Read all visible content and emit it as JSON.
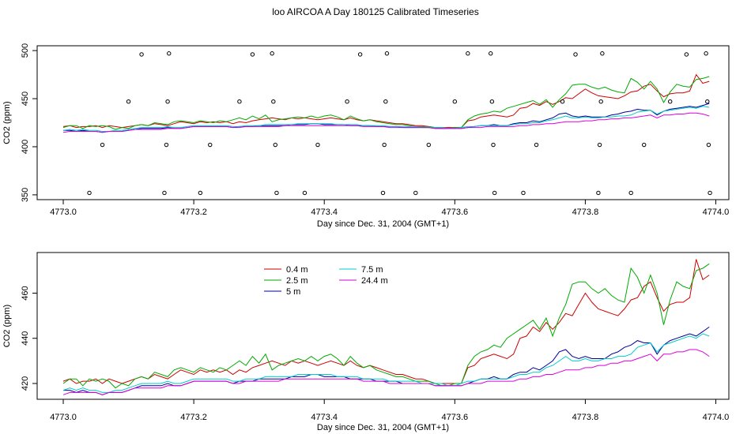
{
  "title": "loo AIRCOA A  Day 180125  Calibrated Timeseries",
  "chart_data": [
    {
      "type": "scatter",
      "xlabel": "Day since Dec. 31, 2004 (GMT+1)",
      "ylabel": "CO2 (ppm)",
      "xlim": [
        4772.96,
        4774.02
      ],
      "ylim": [
        345,
        505
      ],
      "xticks": [
        "4773.0",
        "4773.2",
        "4773.4",
        "4773.6",
        "4773.8",
        "4774.0"
      ],
      "yticks": [
        "350",
        "400",
        "450",
        "500"
      ],
      "lines_shared_with_panel_2": true,
      "points": [
        [
          4773.04,
          352
        ],
        [
          4773.06,
          402
        ],
        [
          4773.1,
          447
        ],
        [
          4773.12,
          496
        ],
        [
          4773.155,
          352
        ],
        [
          4773.158,
          402
        ],
        [
          4773.16,
          447
        ],
        [
          4773.162,
          497
        ],
        [
          4773.21,
          352
        ],
        [
          4773.225,
          402
        ],
        [
          4773.27,
          447
        ],
        [
          4773.29,
          496
        ],
        [
          4773.32,
          497
        ],
        [
          4773.322,
          447
        ],
        [
          4773.325,
          402
        ],
        [
          4773.327,
          352
        ],
        [
          4773.37,
          352
        ],
        [
          4773.39,
          402
        ],
        [
          4773.435,
          447
        ],
        [
          4773.455,
          496
        ],
        [
          4773.49,
          352
        ],
        [
          4773.492,
          402
        ],
        [
          4773.494,
          447
        ],
        [
          4773.496,
          497
        ],
        [
          4773.54,
          352
        ],
        [
          4773.56,
          402
        ],
        [
          4773.6,
          447
        ],
        [
          4773.62,
          497
        ],
        [
          4773.655,
          497
        ],
        [
          4773.657,
          447
        ],
        [
          4773.659,
          402
        ],
        [
          4773.661,
          352
        ],
        [
          4773.705,
          352
        ],
        [
          4773.725,
          402
        ],
        [
          4773.765,
          447
        ],
        [
          4773.785,
          496
        ],
        [
          4773.82,
          352
        ],
        [
          4773.822,
          402
        ],
        [
          4773.824,
          447
        ],
        [
          4773.826,
          497
        ],
        [
          4773.87,
          352
        ],
        [
          4773.89,
          402
        ],
        [
          4773.93,
          447
        ],
        [
          4773.955,
          496
        ],
        [
          4773.985,
          497
        ],
        [
          4773.987,
          447
        ],
        [
          4773.989,
          402
        ],
        [
          4773.991,
          352
        ]
      ]
    },
    {
      "type": "line",
      "xlabel": "Day since Dec. 31, 2004 (GMT+1)",
      "ylabel": "CO2 (ppm)",
      "xlim": [
        4772.96,
        4774.02
      ],
      "ylim": [
        413,
        478
      ],
      "xticks": [
        "4773.0",
        "4773.2",
        "4773.4",
        "4773.6",
        "4773.8",
        "4774.0"
      ],
      "yticks": [
        "420",
        "440",
        "460"
      ],
      "legend_placement": "top-left",
      "x": [
        4773.0,
        4773.01,
        4773.02,
        4773.03,
        4773.04,
        4773.05,
        4773.06,
        4773.07,
        4773.08,
        4773.09,
        4773.1,
        4773.11,
        4773.12,
        4773.13,
        4773.14,
        4773.15,
        4773.16,
        4773.17,
        4773.18,
        4773.19,
        4773.2,
        4773.21,
        4773.22,
        4773.23,
        4773.24,
        4773.25,
        4773.26,
        4773.27,
        4773.28,
        4773.29,
        4773.3,
        4773.31,
        4773.32,
        4773.33,
        4773.34,
        4773.35,
        4773.36,
        4773.37,
        4773.38,
        4773.39,
        4773.4,
        4773.41,
        4773.42,
        4773.43,
        4773.44,
        4773.45,
        4773.46,
        4773.47,
        4773.48,
        4773.49,
        4773.5,
        4773.51,
        4773.52,
        4773.53,
        4773.54,
        4773.55,
        4773.56,
        4773.57,
        4773.58,
        4773.59,
        4773.6,
        4773.61,
        4773.62,
        4773.63,
        4773.64,
        4773.65,
        4773.66,
        4773.67,
        4773.68,
        4773.69,
        4773.7,
        4773.71,
        4773.72,
        4773.73,
        4773.74,
        4773.75,
        4773.76,
        4773.77,
        4773.78,
        4773.79,
        4773.8,
        4773.81,
        4773.82,
        4773.83,
        4773.84,
        4773.85,
        4773.86,
        4773.87,
        4773.88,
        4773.89,
        4773.9,
        4773.91,
        4773.92,
        4773.93,
        4773.94,
        4773.95,
        4773.96,
        4773.97,
        4773.98,
        4773.99
      ],
      "series": [
        {
          "name": "0.4 m",
          "color": "#cc0000",
          "values": [
            421,
            422,
            420,
            421,
            421,
            422,
            420,
            422,
            421,
            420,
            421,
            422,
            423,
            422,
            424,
            423,
            422,
            424,
            426,
            425,
            424,
            426,
            425,
            426,
            425,
            426,
            424,
            426,
            425,
            427,
            428,
            429,
            430,
            429,
            428,
            430,
            429,
            430,
            429,
            428,
            429,
            430,
            429,
            428,
            430,
            428,
            427,
            428,
            427,
            426,
            425,
            424,
            424,
            423,
            422,
            422,
            421,
            420,
            420,
            420,
            420,
            420,
            427,
            428,
            431,
            432,
            433,
            432,
            431,
            433,
            440,
            441,
            445,
            443,
            447,
            444,
            447,
            451,
            450,
            455,
            460,
            456,
            453,
            452,
            451,
            450,
            453,
            457,
            458,
            463,
            465,
            458,
            452,
            455,
            456,
            456,
            458,
            475,
            466,
            468
          ]
        },
        {
          "name": "2.5 m",
          "color": "#00aa00",
          "values": [
            420,
            422,
            422,
            419,
            422,
            421,
            422,
            421,
            418,
            420,
            419,
            422,
            423,
            422,
            425,
            424,
            423,
            426,
            427,
            426,
            425,
            427,
            426,
            425,
            427,
            426,
            428,
            430,
            428,
            432,
            429,
            433,
            426,
            428,
            429,
            430,
            431,
            430,
            432,
            430,
            432,
            433,
            431,
            428,
            432,
            429,
            427,
            428,
            426,
            425,
            424,
            423,
            423,
            422,
            421,
            421,
            421,
            420,
            419,
            419,
            420,
            420,
            428,
            432,
            434,
            435,
            437,
            436,
            440,
            442,
            444,
            446,
            448,
            444,
            449,
            441,
            449,
            455,
            464,
            465,
            465,
            462,
            460,
            462,
            459,
            457,
            456,
            471,
            467,
            460,
            468,
            460,
            446,
            457,
            465,
            463,
            462,
            470,
            471,
            473
          ]
        },
        {
          "name": "5 m",
          "color": "#000099",
          "values": [
            417,
            417,
            416,
            417,
            416,
            416,
            415,
            416,
            416,
            416,
            417,
            418,
            419,
            419,
            419,
            419,
            420,
            419,
            419,
            420,
            421,
            421,
            421,
            421,
            421,
            421,
            420,
            421,
            421,
            421,
            422,
            422,
            422,
            422,
            422,
            423,
            423,
            423,
            424,
            424,
            423,
            423,
            423,
            423,
            422,
            422,
            422,
            422,
            421,
            421,
            421,
            421,
            420,
            420,
            420,
            420,
            420,
            419,
            419,
            419,
            419,
            419,
            420,
            421,
            422,
            422,
            423,
            422,
            422,
            424,
            425,
            425,
            427,
            426,
            428,
            430,
            434,
            435,
            432,
            431,
            432,
            431,
            431,
            431,
            433,
            434,
            436,
            437,
            439,
            438,
            438,
            433,
            437,
            439,
            440,
            441,
            442,
            441,
            443,
            445
          ]
        },
        {
          "name": "7.5 m",
          "color": "#00cccc",
          "values": [
            417,
            418,
            417,
            418,
            417,
            417,
            416,
            416,
            417,
            417,
            418,
            419,
            420,
            420,
            420,
            420,
            421,
            420,
            420,
            421,
            422,
            422,
            422,
            422,
            422,
            422,
            421,
            421,
            422,
            422,
            422,
            423,
            423,
            423,
            423,
            423,
            424,
            424,
            424,
            424,
            424,
            424,
            423,
            423,
            423,
            423,
            422,
            422,
            422,
            422,
            421,
            421,
            421,
            421,
            421,
            420,
            420,
            420,
            420,
            419,
            419,
            420,
            421,
            421,
            422,
            422,
            422,
            422,
            422,
            423,
            424,
            424,
            425,
            425,
            427,
            428,
            430,
            432,
            430,
            430,
            431,
            430,
            430,
            431,
            431,
            432,
            432,
            433,
            436,
            437,
            438,
            434,
            437,
            438,
            439,
            440,
            441,
            440,
            442,
            441
          ]
        },
        {
          "name": "24.4 m",
          "color": "#dd00dd",
          "values": [
            415,
            416,
            416,
            416,
            416,
            416,
            415,
            416,
            416,
            416,
            417,
            418,
            418,
            418,
            418,
            418,
            419,
            419,
            419,
            420,
            421,
            421,
            421,
            421,
            421,
            421,
            420,
            420,
            421,
            421,
            421,
            421,
            421,
            421,
            422,
            422,
            422,
            422,
            422,
            422,
            422,
            422,
            422,
            422,
            422,
            422,
            421,
            421,
            421,
            421,
            420,
            420,
            420,
            420,
            420,
            420,
            420,
            419,
            419,
            419,
            419,
            419,
            420,
            420,
            420,
            421,
            421,
            421,
            421,
            421,
            422,
            422,
            423,
            423,
            424,
            424,
            425,
            426,
            426,
            426,
            427,
            427,
            428,
            428,
            429,
            429,
            430,
            430,
            431,
            432,
            433,
            430,
            433,
            433,
            434,
            434,
            435,
            435,
            434,
            432
          ]
        }
      ]
    }
  ]
}
